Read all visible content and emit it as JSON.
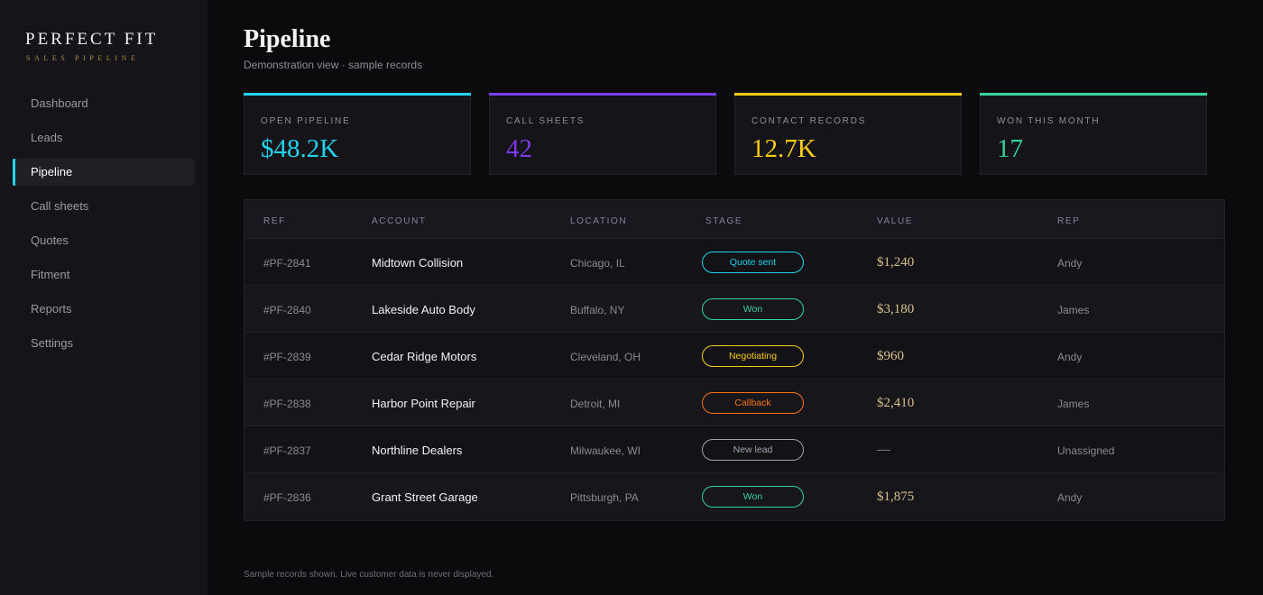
{
  "brand": {
    "title": "PERFECT FIT",
    "subtitle": "SALES PIPELINE"
  },
  "nav": {
    "items": [
      {
        "label": "Dashboard",
        "active": false
      },
      {
        "label": "Leads",
        "active": false
      },
      {
        "label": "Pipeline",
        "active": true
      },
      {
        "label": "Call sheets",
        "active": false
      },
      {
        "label": "Quotes",
        "active": false
      },
      {
        "label": "Fitment",
        "active": false
      },
      {
        "label": "Reports",
        "active": false
      },
      {
        "label": "Settings",
        "active": false
      }
    ],
    "active_accent": "#22d3ee"
  },
  "header": {
    "title": "Pipeline",
    "subtitle": "Demonstration view · sample records"
  },
  "cards": [
    {
      "label": "OPEN PIPELINE",
      "value": "$48.2K",
      "color": "#22d3ee"
    },
    {
      "label": "CALL SHEETS",
      "value": "42",
      "color": "#7c3aed"
    },
    {
      "label": "CONTACT RECORDS",
      "value": "12.7K",
      "color": "#facc15"
    },
    {
      "label": "WON THIS MONTH",
      "value": "17",
      "color": "#34d399"
    }
  ],
  "table": {
    "columns": [
      "REF",
      "ACCOUNT",
      "LOCATION",
      "STAGE",
      "VALUE",
      "REP"
    ],
    "rows": [
      {
        "ref": "#PF-2841",
        "account": "Midtown Collision",
        "location": "Chicago, IL",
        "stage": "Quote sent",
        "stage_color": "#22d3ee",
        "value": "$1,240",
        "rep": "Andy"
      },
      {
        "ref": "#PF-2840",
        "account": "Lakeside Auto Body",
        "location": "Buffalo, NY",
        "stage": "Won",
        "stage_color": "#34d399",
        "value": "$3,180",
        "rep": "James"
      },
      {
        "ref": "#PF-2839",
        "account": "Cedar Ridge Motors",
        "location": "Cleveland, OH",
        "stage": "Negotiating",
        "stage_color": "#facc15",
        "value": "$960",
        "rep": "Andy"
      },
      {
        "ref": "#PF-2838",
        "account": "Harbor Point Repair",
        "location": "Detroit, MI",
        "stage": "Callback",
        "stage_color": "#f97316",
        "value": "$2,410",
        "rep": "James"
      },
      {
        "ref": "#PF-2837",
        "account": "Northline Dealers",
        "location": "Milwaukee, WI",
        "stage": "New lead",
        "stage_color": "#9ca3af",
        "value": "—",
        "rep": "Unassigned"
      },
      {
        "ref": "#PF-2836",
        "account": "Grant Street Garage",
        "location": "Pittsburgh, PA",
        "stage": "Won",
        "stage_color": "#34d399",
        "value": "$1,875",
        "rep": "Andy"
      }
    ]
  },
  "footer": {
    "note": "Sample records shown. Live customer data is never displayed."
  }
}
